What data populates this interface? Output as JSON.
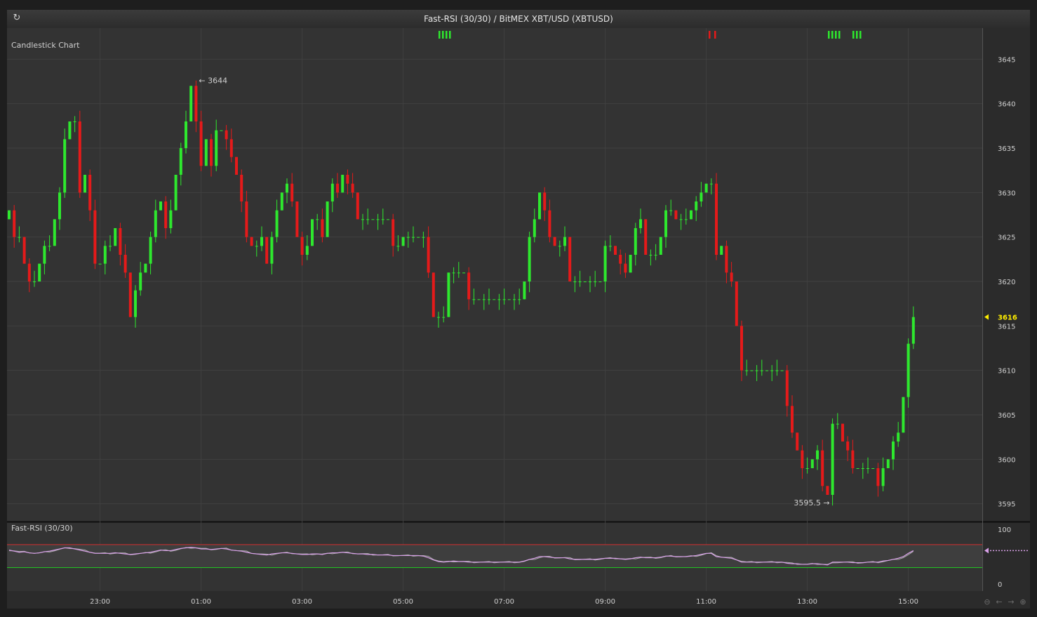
{
  "window": {
    "title": "Fast-RSI (30/30) / BitMEX XBT/USD (XBTUSD)",
    "refresh_icon": "refresh-icon"
  },
  "main_panel": {
    "label": "Candlestick Chart",
    "last_price": "3616",
    "high_annotation": "3644",
    "low_annotation": "3595.5"
  },
  "rsi_panel": {
    "label": "Fast-RSI (30/30)"
  },
  "nav_icons": [
    "zoom-out-icon",
    "arrow-left-icon",
    "arrow-right-icon",
    "zoom-in-icon"
  ],
  "colors": {
    "background": "#333333",
    "up": "#2ee82e",
    "down": "#e51a1a",
    "last_price": "#ffee00",
    "rsi_line": "#d8a0e8",
    "rsi_upper_band": "#d43030",
    "rsi_lower_band": "#22cc22"
  },
  "chart_data": [
    {
      "type": "candlestick",
      "title": "Fast-RSI (30/30) / BitMEX XBT/USD (XBTUSD)",
      "ylim": [
        3593,
        3648.5
      ],
      "y_ticks": [
        3595,
        3600,
        3605,
        3610,
        3615,
        3620,
        3625,
        3630,
        3635,
        3640,
        3645
      ],
      "x_ticks": [
        "23:00",
        "01:00",
        "03:00",
        "05:00",
        "07:00",
        "09:00",
        "11:00",
        "13:00",
        "15:00"
      ],
      "x_tick_index": [
        18,
        38,
        58,
        78,
        98,
        118,
        138,
        158,
        178
      ],
      "close": [
        3628,
        3625,
        3625,
        3622,
        3620,
        3620,
        3622,
        3624,
        3624,
        3627,
        3630,
        3636,
        3638,
        3638,
        3630,
        3632,
        3628,
        3622,
        3622,
        3624,
        3624,
        3626,
        3623,
        3621,
        3616,
        3619,
        3621,
        3622,
        3625,
        3628,
        3629,
        3626,
        3628,
        3632,
        3635,
        3638,
        3642,
        3638,
        3633,
        3636,
        3633,
        3637,
        3637,
        3636,
        3634,
        3632,
        3629,
        3625,
        3624,
        3624,
        3625,
        3622,
        3625,
        3628,
        3630,
        3631,
        3629,
        3625,
        3623,
        3624,
        3627,
        3627,
        3625,
        3629,
        3631,
        3630,
        3632,
        3631,
        3630,
        3627,
        3627,
        3627,
        3627,
        3627,
        3627,
        3627,
        3624,
        3624,
        3625,
        3625,
        3625,
        3625,
        3625,
        3621,
        3616,
        3616,
        3616,
        3621,
        3621,
        3621,
        3621,
        3618,
        3618,
        3618,
        3618,
        3618,
        3618,
        3618,
        3618,
        3618,
        3618,
        3618,
        3620,
        3625,
        3627,
        3630,
        3628,
        3625,
        3624,
        3624,
        3625,
        3620,
        3620,
        3620,
        3620,
        3620,
        3620,
        3620,
        3624,
        3624,
        3623,
        3622,
        3621,
        3623,
        3626,
        3627,
        3623,
        3623,
        3623,
        3625,
        3628,
        3628,
        3627,
        3627,
        3627,
        3628,
        3629,
        3630,
        3631,
        3631,
        3623,
        3624,
        3621,
        3620,
        3615,
        3610,
        3610,
        3610,
        3610,
        3610,
        3610,
        3610,
        3610,
        3610,
        3606,
        3603,
        3601,
        3599,
        3599,
        3600,
        3601,
        3597,
        3596,
        3604,
        3604,
        3602,
        3601,
        3599,
        3599,
        3599,
        3599,
        3599,
        3597,
        3599,
        3600,
        3602,
        3603,
        3607,
        3613,
        3616
      ]
    },
    {
      "type": "line",
      "title": "Fast-RSI (30/30)",
      "ylim": [
        0,
        100
      ],
      "y_ticks": [
        0,
        100
      ],
      "bands": [
        72,
        30
      ],
      "series": [
        {
          "values": [
            62,
            60,
            58,
            59,
            57,
            56,
            57,
            59,
            60,
            62,
            64,
            66,
            66,
            64,
            62,
            60,
            58,
            56,
            56,
            56,
            56,
            57,
            56,
            55,
            54,
            55,
            56,
            57,
            58,
            60,
            62,
            61,
            61,
            63,
            65,
            66,
            67,
            66,
            64,
            64,
            63,
            64,
            65,
            64,
            62,
            61,
            60,
            58,
            56,
            55,
            54,
            53,
            55,
            56,
            57,
            57,
            56,
            55,
            54,
            54,
            55,
            55,
            54,
            56,
            57,
            57,
            58,
            57,
            56,
            55,
            55,
            54,
            54,
            53,
            53,
            53,
            52,
            52,
            52,
            52,
            52,
            52,
            51,
            48,
            44,
            41,
            40,
            41,
            42,
            41,
            41,
            40,
            40,
            40,
            40,
            40,
            40,
            40,
            40,
            40,
            40,
            40,
            42,
            45,
            47,
            50,
            50,
            49,
            48,
            48,
            48,
            46,
            45,
            45,
            45,
            45,
            45,
            46,
            47,
            47,
            47,
            46,
            45,
            46,
            48,
            49,
            48,
            48,
            48,
            49,
            51,
            51,
            50,
            50,
            50,
            51,
            52,
            54,
            56,
            56,
            50,
            49,
            48,
            47,
            44,
            40,
            40,
            40,
            40,
            40,
            40,
            40,
            40,
            40,
            38,
            37,
            37,
            36,
            36,
            37,
            37,
            36,
            35,
            40,
            40,
            40,
            40,
            39,
            39,
            39,
            40,
            40,
            40,
            42,
            43,
            45,
            47,
            50,
            56,
            61
          ]
        }
      ]
    }
  ]
}
